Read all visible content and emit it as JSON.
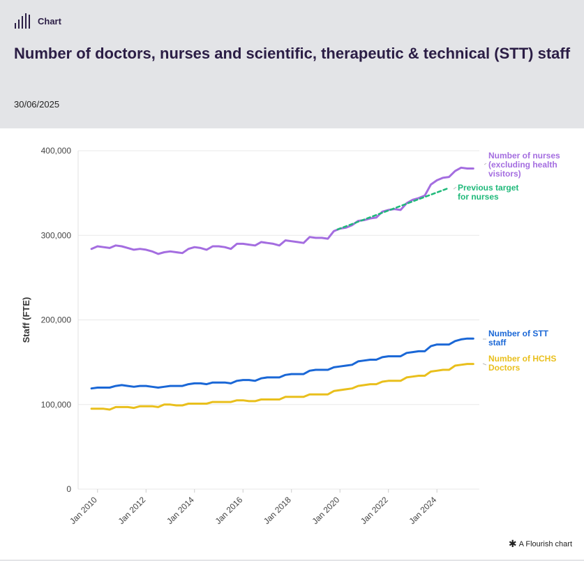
{
  "header": {
    "badge_label": "Chart",
    "title": "Number of doctors, nurses and scientific, therapeutic & technical (STT) staff",
    "date": "30/06/2025"
  },
  "footer": {
    "credit": "A Flourish chart",
    "icon": "asterisk-icon"
  },
  "colors": {
    "header_bg": "#e3e4e7",
    "title": "#2b1d45",
    "nurses": "#a46de0",
    "stt": "#1a67d6",
    "doctors": "#e9bf1c",
    "target": "#1fb97a",
    "grid": "#e8e8e8"
  },
  "chart_data": {
    "type": "line",
    "title": "Number of doctors, nurses and scientific, therapeutic & technical (STT) staff",
    "xlabel": "",
    "ylabel": "Staff (FTE)",
    "xlim": [
      2009.2,
      2025.75
    ],
    "ylim": [
      0,
      400000
    ],
    "y_ticks": [
      0,
      100000,
      200000,
      300000,
      400000
    ],
    "y_tick_labels": [
      "0",
      "100,000",
      "200,000",
      "300,000",
      "400,000"
    ],
    "x_ticks": [
      2010,
      2012,
      2014,
      2016,
      2018,
      2020,
      2022,
      2024
    ],
    "x_tick_labels": [
      "Jan 2010",
      "Jan 2012",
      "Jan 2014",
      "Jan 2016",
      "Jan 2018",
      "Jan 2020",
      "Jan 2022",
      "Jan 2024"
    ],
    "series": [
      {
        "name": "Number of nurses (excluding health visitors)",
        "label_lines": [
          "Number of nurses",
          "(excluding health",
          "visitors)"
        ],
        "color": "#a46de0",
        "x": [
          2009.75,
          2010.0,
          2010.25,
          2010.5,
          2010.75,
          2011.0,
          2011.25,
          2011.5,
          2011.75,
          2012.0,
          2012.25,
          2012.5,
          2012.75,
          2013.0,
          2013.25,
          2013.5,
          2013.75,
          2014.0,
          2014.25,
          2014.5,
          2014.75,
          2015.0,
          2015.25,
          2015.5,
          2015.75,
          2016.0,
          2016.25,
          2016.5,
          2016.75,
          2017.0,
          2017.25,
          2017.5,
          2017.75,
          2018.0,
          2018.25,
          2018.5,
          2018.75,
          2019.0,
          2019.25,
          2019.5,
          2019.75,
          2020.0,
          2020.25,
          2020.5,
          2020.75,
          2021.0,
          2021.25,
          2021.5,
          2021.75,
          2022.0,
          2022.25,
          2022.5,
          2022.75,
          2023.0,
          2023.25,
          2023.5,
          2023.75,
          2024.0,
          2024.25,
          2024.5,
          2024.75,
          2025.0,
          2025.25,
          2025.5
        ],
        "values": [
          284000,
          287000,
          286000,
          285000,
          288000,
          287000,
          285000,
          283000,
          284000,
          283000,
          281000,
          278000,
          280000,
          281000,
          280000,
          279000,
          284000,
          286000,
          285000,
          283000,
          287000,
          287000,
          286000,
          284000,
          290000,
          290000,
          289000,
          288000,
          292000,
          291000,
          290000,
          288000,
          294000,
          293000,
          292000,
          291000,
          298000,
          297000,
          297000,
          296000,
          305000,
          308000,
          309000,
          312000,
          317000,
          318000,
          320000,
          321000,
          328000,
          330000,
          331000,
          330000,
          338000,
          342000,
          344000,
          347000,
          360000,
          365000,
          368000,
          369000,
          376000,
          380000,
          379000,
          379000
        ]
      },
      {
        "name": "Number of STT staff",
        "label_lines": [
          "Number of STT",
          "staff"
        ],
        "color": "#1a67d6",
        "x": [
          2009.75,
          2010.0,
          2010.25,
          2010.5,
          2010.75,
          2011.0,
          2011.25,
          2011.5,
          2011.75,
          2012.0,
          2012.25,
          2012.5,
          2012.75,
          2013.0,
          2013.25,
          2013.5,
          2013.75,
          2014.0,
          2014.25,
          2014.5,
          2014.75,
          2015.0,
          2015.25,
          2015.5,
          2015.75,
          2016.0,
          2016.25,
          2016.5,
          2016.75,
          2017.0,
          2017.25,
          2017.5,
          2017.75,
          2018.0,
          2018.25,
          2018.5,
          2018.75,
          2019.0,
          2019.25,
          2019.5,
          2019.75,
          2020.0,
          2020.25,
          2020.5,
          2020.75,
          2021.0,
          2021.25,
          2021.5,
          2021.75,
          2022.0,
          2022.25,
          2022.5,
          2022.75,
          2023.0,
          2023.25,
          2023.5,
          2023.75,
          2024.0,
          2024.25,
          2024.5,
          2024.75,
          2025.0,
          2025.25,
          2025.5
        ],
        "values": [
          119000,
          120000,
          120000,
          120000,
          122000,
          123000,
          122000,
          121000,
          122000,
          122000,
          121000,
          120000,
          121000,
          122000,
          122000,
          122000,
          124000,
          125000,
          125000,
          124000,
          126000,
          126000,
          126000,
          125000,
          128000,
          129000,
          129000,
          128000,
          131000,
          132000,
          132000,
          132000,
          135000,
          136000,
          136000,
          136000,
          140000,
          141000,
          141000,
          141000,
          144000,
          145000,
          146000,
          147000,
          151000,
          152000,
          153000,
          153000,
          156000,
          157000,
          157000,
          157000,
          161000,
          162000,
          163000,
          163000,
          169000,
          171000,
          171000,
          171000,
          175000,
          177000,
          178000,
          178000
        ]
      },
      {
        "name": "Number of HCHS Doctors",
        "label_lines": [
          "Number of HCHS",
          "Doctors"
        ],
        "color": "#e9bf1c",
        "x": [
          2009.75,
          2010.0,
          2010.25,
          2010.5,
          2010.75,
          2011.0,
          2011.25,
          2011.5,
          2011.75,
          2012.0,
          2012.25,
          2012.5,
          2012.75,
          2013.0,
          2013.25,
          2013.5,
          2013.75,
          2014.0,
          2014.25,
          2014.5,
          2014.75,
          2015.0,
          2015.25,
          2015.5,
          2015.75,
          2016.0,
          2016.25,
          2016.5,
          2016.75,
          2017.0,
          2017.25,
          2017.5,
          2017.75,
          2018.0,
          2018.25,
          2018.5,
          2018.75,
          2019.0,
          2019.25,
          2019.5,
          2019.75,
          2020.0,
          2020.25,
          2020.5,
          2020.75,
          2021.0,
          2021.25,
          2021.5,
          2021.75,
          2022.0,
          2022.25,
          2022.5,
          2022.75,
          2023.0,
          2023.25,
          2023.5,
          2023.75,
          2024.0,
          2024.25,
          2024.5,
          2024.75,
          2025.0,
          2025.25,
          2025.5
        ],
        "values": [
          95000,
          95000,
          95000,
          94000,
          97000,
          97000,
          97000,
          96000,
          98000,
          98000,
          98000,
          97000,
          100000,
          100000,
          99000,
          99000,
          101000,
          101000,
          101000,
          101000,
          103000,
          103000,
          103000,
          103000,
          105000,
          105000,
          104000,
          104000,
          106000,
          106000,
          106000,
          106000,
          109000,
          109000,
          109000,
          109000,
          112000,
          112000,
          112000,
          112000,
          116000,
          117000,
          118000,
          119000,
          122000,
          123000,
          124000,
          124000,
          127000,
          128000,
          128000,
          128000,
          132000,
          133000,
          134000,
          134000,
          139000,
          140000,
          141000,
          141000,
          146000,
          147000,
          148000,
          148000
        ]
      },
      {
        "name": "Previous target for nurses",
        "label_lines": [
          "Previous target",
          "for nurses"
        ],
        "color": "#1fb97a",
        "dashed": true,
        "x": [
          2019.9,
          2024.5
        ],
        "values": [
          307000,
          356000
        ]
      }
    ]
  }
}
